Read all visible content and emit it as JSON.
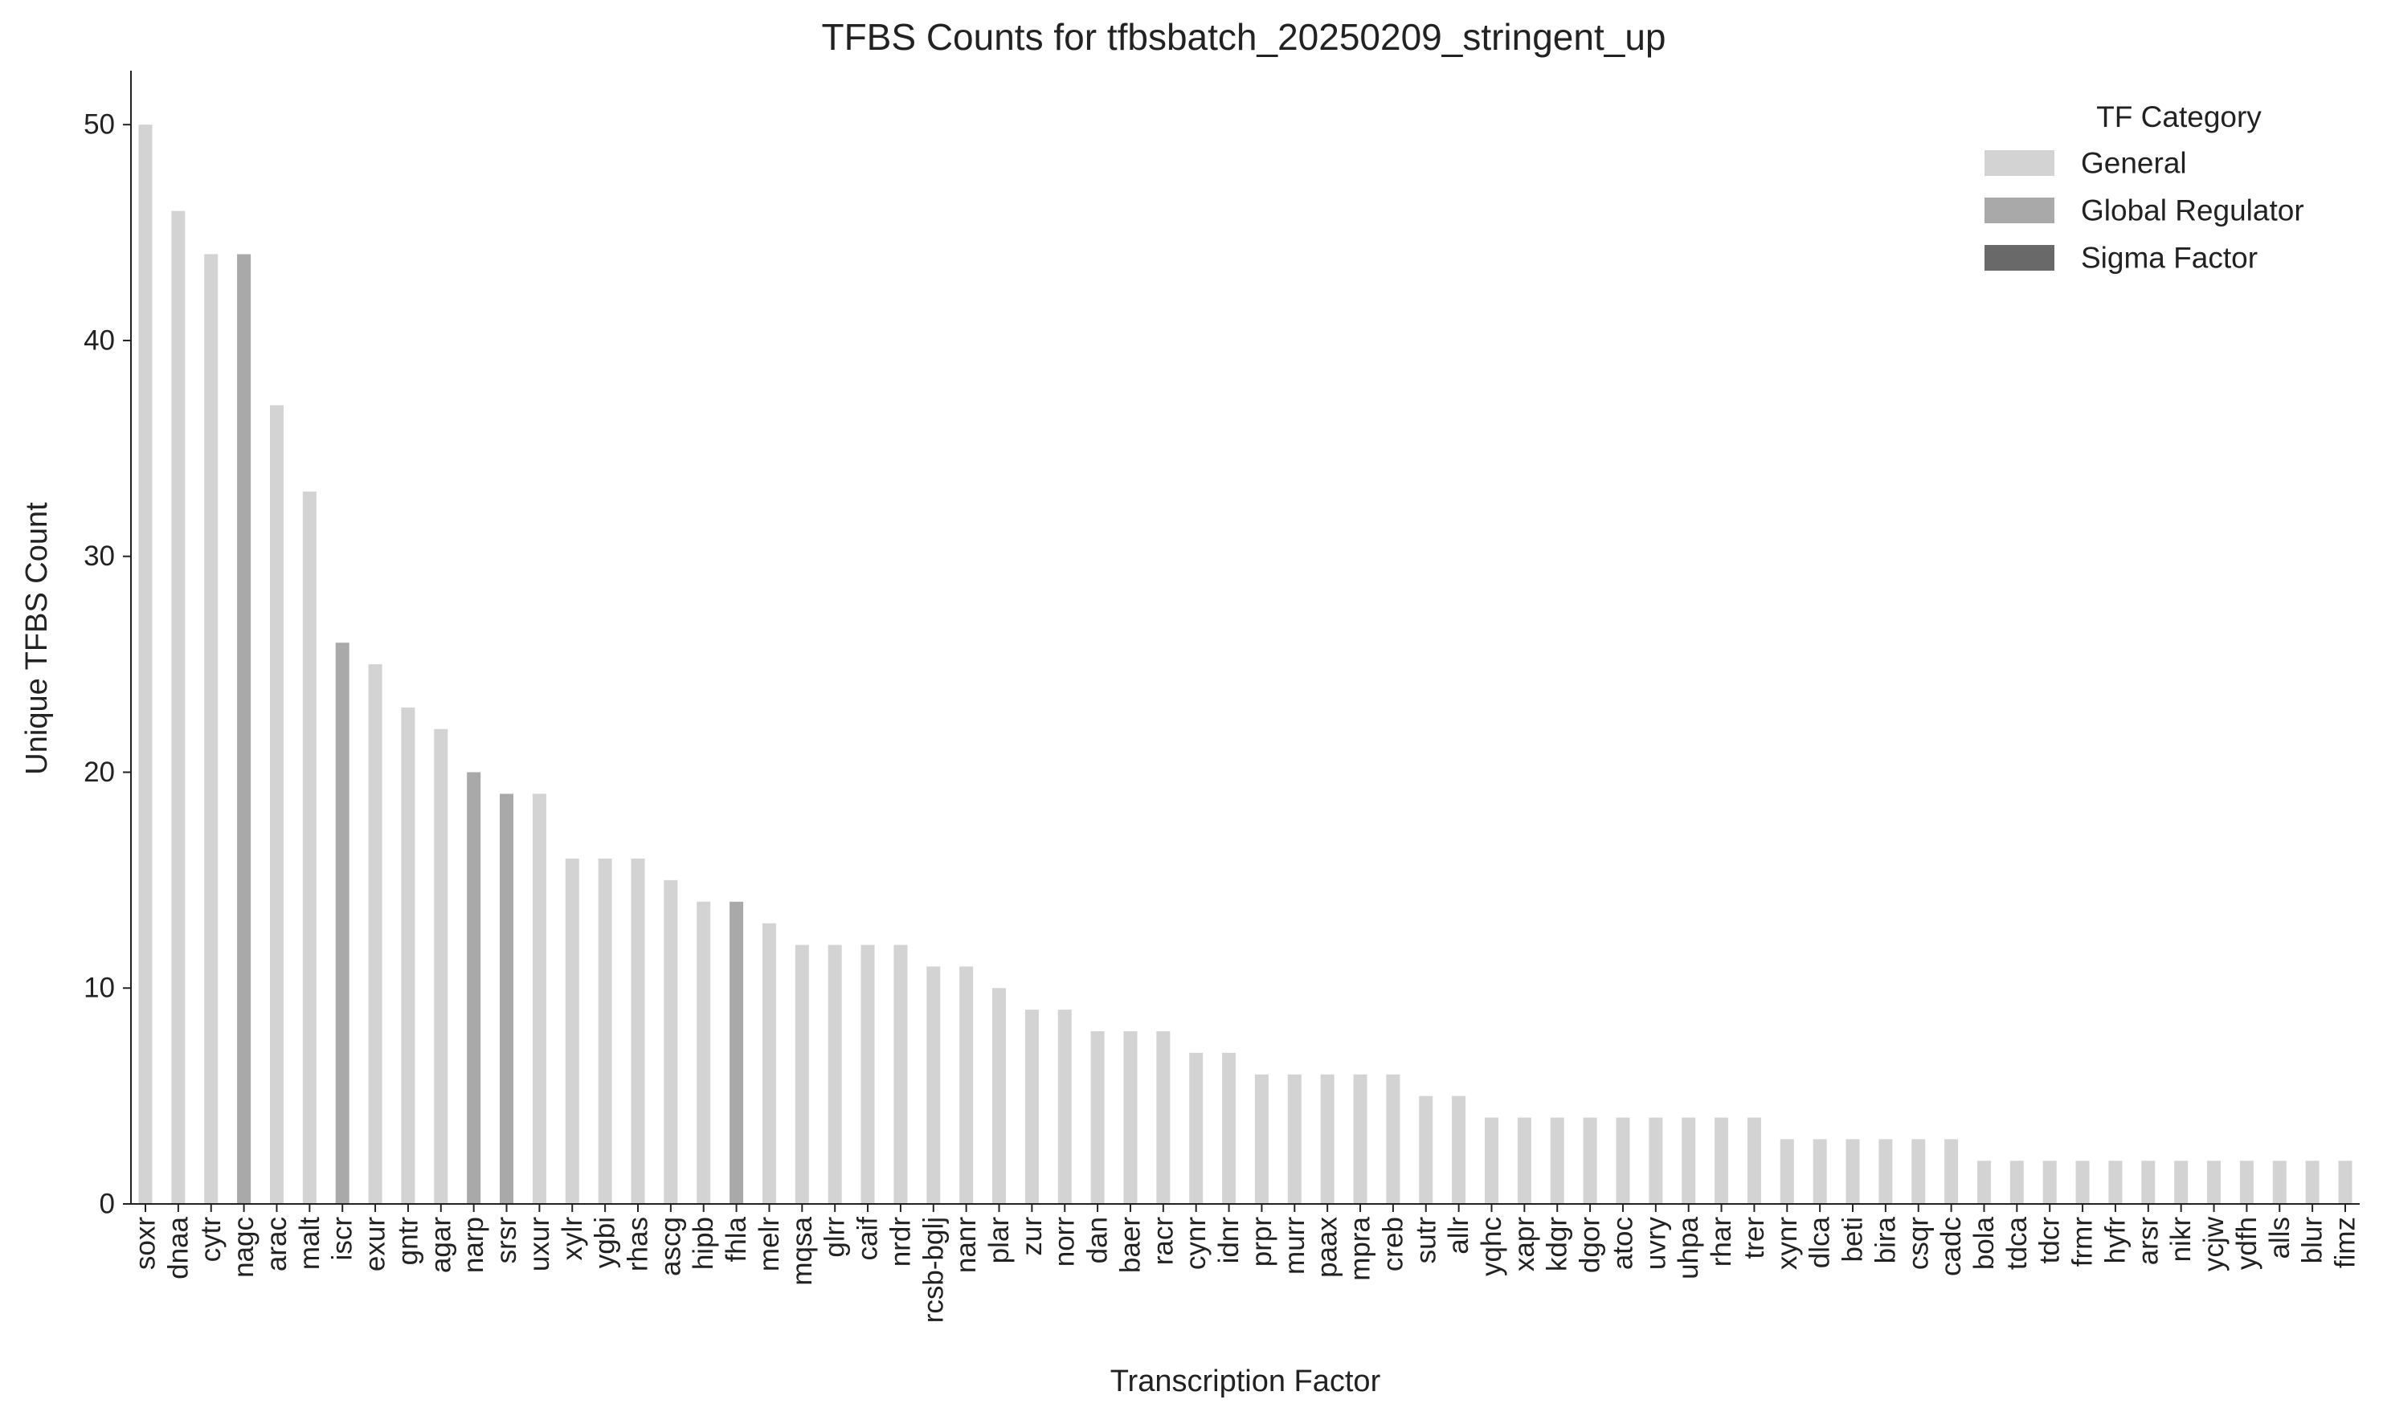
{
  "chart_data": {
    "type": "bar",
    "title": "TFBS Counts for tfbsbatch_20250209_stringent_up",
    "xlabel": "Transcription Factor",
    "ylabel": "Unique TFBS Count",
    "ylim": [
      0,
      52.5
    ],
    "yticks": [
      0,
      10,
      20,
      30,
      40,
      50
    ],
    "legend": {
      "title": "TF Category",
      "placement": "top-right",
      "entries": [
        {
          "name": "General",
          "color": "#d3d3d3"
        },
        {
          "name": "Global Regulator",
          "color": "#a9a9a9"
        },
        {
          "name": "Sigma Factor",
          "color": "#696969"
        }
      ]
    },
    "categories": [
      "soxr",
      "dnaa",
      "cytr",
      "nagc",
      "arac",
      "malt",
      "iscr",
      "exur",
      "gntr",
      "agar",
      "narp",
      "srsr",
      "uxur",
      "xylr",
      "ygbi",
      "rhas",
      "ascg",
      "hipb",
      "fhla",
      "melr",
      "mqsa",
      "glrr",
      "caif",
      "nrdr",
      "rcsb-bglj",
      "nanr",
      "plar",
      "zur",
      "norr",
      "dan",
      "baer",
      "racr",
      "cynr",
      "idnr",
      "prpr",
      "murr",
      "paax",
      "mpra",
      "creb",
      "sutr",
      "allr",
      "yqhc",
      "xapr",
      "kdgr",
      "dgor",
      "atoc",
      "uvry",
      "uhpa",
      "rhar",
      "trer",
      "xynr",
      "dlca",
      "beti",
      "bira",
      "csqr",
      "cadc",
      "bola",
      "tdca",
      "tdcr",
      "frmr",
      "hyfr",
      "arsr",
      "nikr",
      "ycjw",
      "ydfh",
      "alls",
      "blur",
      "fimz"
    ],
    "values": [
      50,
      46,
      44,
      44,
      37,
      33,
      26,
      25,
      23,
      22,
      20,
      19,
      19,
      16,
      16,
      16,
      15,
      14,
      14,
      13,
      12,
      12,
      12,
      12,
      11,
      11,
      10,
      9,
      9,
      8,
      8,
      8,
      7,
      7,
      6,
      6,
      6,
      6,
      6,
      5,
      5,
      4,
      4,
      4,
      4,
      4,
      4,
      4,
      4,
      4,
      3,
      3,
      3,
      3,
      3,
      3,
      2,
      2,
      2,
      2,
      2,
      2,
      2,
      2,
      2,
      2,
      2,
      2
    ],
    "category_type": [
      "General",
      "General",
      "General",
      "Global Regulator",
      "General",
      "General",
      "Global Regulator",
      "General",
      "General",
      "General",
      "Global Regulator",
      "Global Regulator",
      "General",
      "General",
      "General",
      "General",
      "General",
      "General",
      "Global Regulator",
      "General",
      "General",
      "General",
      "General",
      "General",
      "General",
      "General",
      "General",
      "General",
      "General",
      "General",
      "General",
      "General",
      "General",
      "General",
      "General",
      "General",
      "General",
      "General",
      "General",
      "General",
      "General",
      "General",
      "General",
      "General",
      "General",
      "General",
      "General",
      "General",
      "General",
      "General",
      "General",
      "General",
      "General",
      "General",
      "General",
      "General",
      "General",
      "General",
      "General",
      "General",
      "General",
      "General",
      "General",
      "General",
      "General",
      "General",
      "General",
      "General"
    ],
    "grid": false
  }
}
